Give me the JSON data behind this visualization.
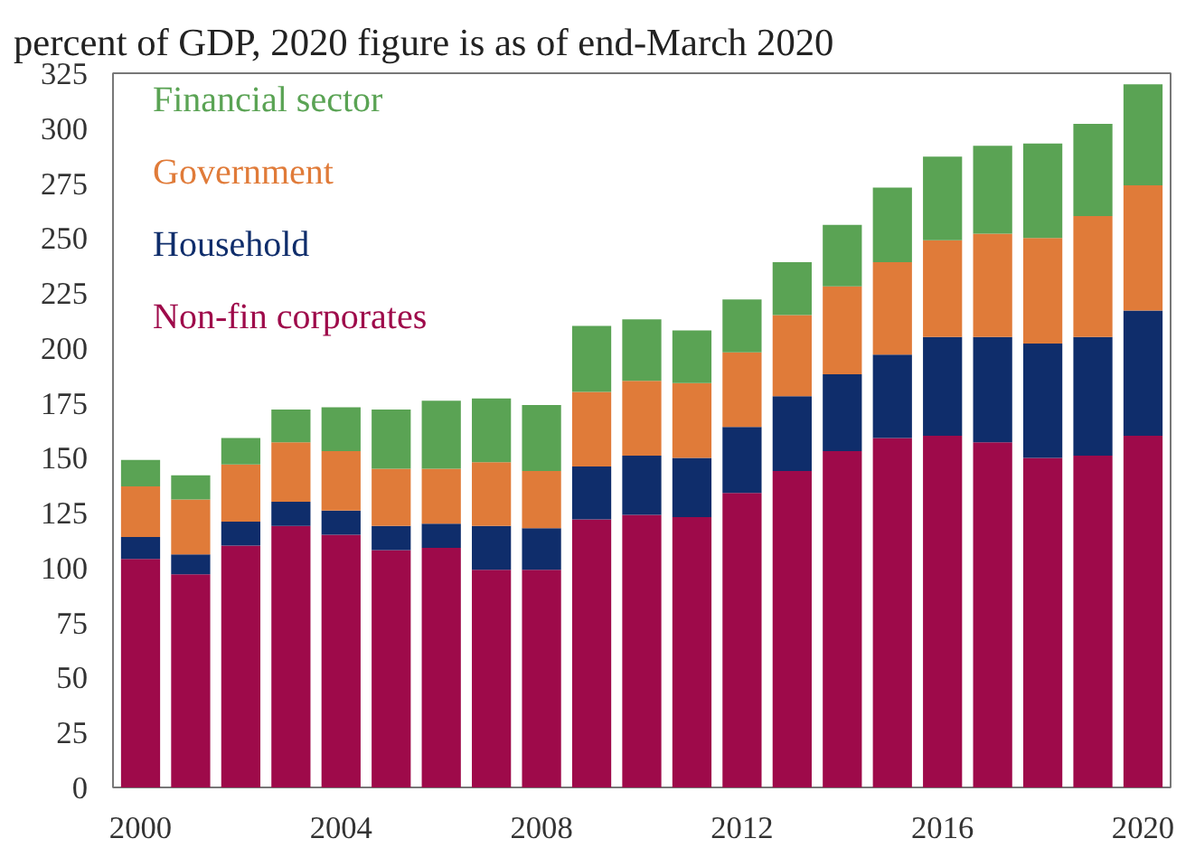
{
  "chart_data": {
    "type": "bar",
    "stacked": true,
    "title": "percent of GDP,  2020 figure is as of end-March 2020",
    "x": [
      2000,
      2001,
      2002,
      2003,
      2004,
      2005,
      2006,
      2007,
      2008,
      2009,
      2010,
      2011,
      2012,
      2013,
      2014,
      2015,
      2016,
      2017,
      2018,
      2019,
      2020
    ],
    "xlim": [
      1999.45,
      2020.55
    ],
    "xticks": [
      2000,
      2004,
      2008,
      2012,
      2016,
      2020
    ],
    "ylim": [
      0,
      325
    ],
    "yticks": [
      0,
      25,
      50,
      75,
      100,
      125,
      150,
      175,
      200,
      225,
      250,
      275,
      300,
      325
    ],
    "grid": false,
    "legend": "top left",
    "series": [
      {
        "name": "Non-fin corporates",
        "color": "#9e0a4a",
        "values": [
          104,
          97,
          110,
          119,
          115,
          108,
          109,
          99,
          99,
          122,
          124,
          123,
          134,
          144,
          153,
          159,
          160,
          157,
          150,
          151,
          160
        ]
      },
      {
        "name": "Household",
        "color": "#0f2d6b",
        "values": [
          10,
          9,
          11,
          11,
          11,
          11,
          11,
          20,
          19,
          24,
          27,
          27,
          30,
          34,
          35,
          38,
          45,
          48,
          52,
          54,
          57
        ]
      },
      {
        "name": "Government",
        "color": "#e07b39",
        "values": [
          23,
          25,
          26,
          27,
          27,
          26,
          25,
          29,
          26,
          34,
          34,
          34,
          34,
          37,
          40,
          42,
          44,
          47,
          48,
          55,
          57
        ]
      },
      {
        "name": "Financial sector",
        "color": "#5aa354",
        "values": [
          12,
          11,
          12,
          15,
          20,
          27,
          31,
          29,
          30,
          30,
          28,
          24,
          24,
          24,
          28,
          34,
          38,
          40,
          43,
          42,
          46
        ]
      }
    ]
  }
}
